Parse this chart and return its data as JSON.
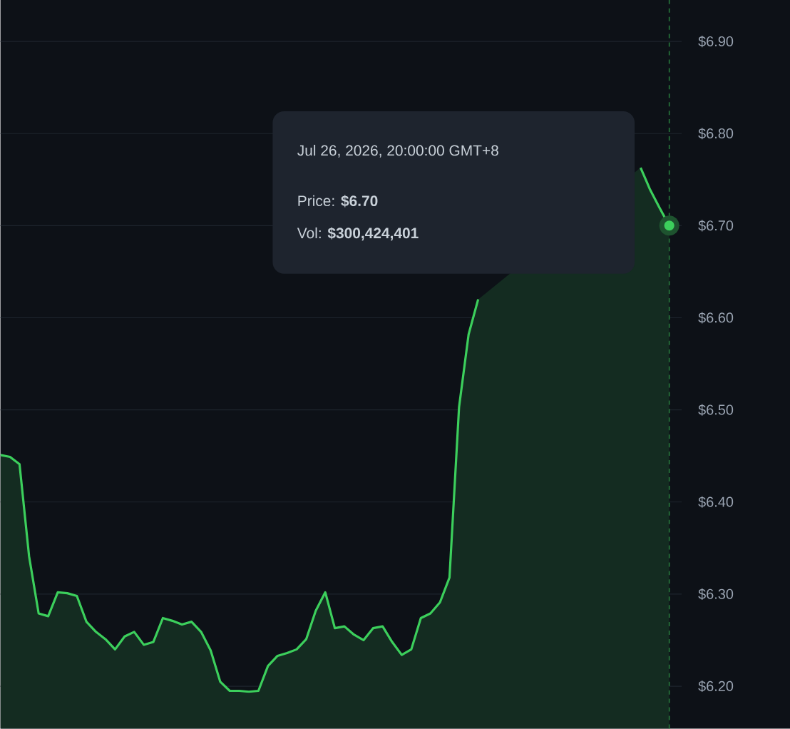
{
  "chart_data": {
    "type": "area",
    "color": "#3ccf5c",
    "categories": [
      null,
      null,
      null,
      null,
      null,
      null,
      null,
      null,
      null,
      null,
      null,
      null,
      null,
      null,
      null,
      null,
      null,
      null,
      null,
      null,
      null,
      null,
      null,
      null,
      null,
      null,
      null,
      null,
      null,
      null,
      null,
      null,
      null,
      null,
      null,
      null,
      null,
      null,
      null,
      null,
      null,
      null,
      null,
      null,
      null,
      null,
      null,
      null,
      null,
      null,
      null,
      null,
      null,
      null,
      null,
      null,
      null,
      null,
      null,
      null,
      null,
      null,
      null,
      null,
      null,
      null,
      null,
      null,
      null,
      null,
      null
    ],
    "values": [
      6.451,
      6.449,
      6.441,
      6.341,
      6.279,
      6.276,
      6.302,
      6.301,
      6.298,
      6.27,
      6.259,
      6.251,
      6.24,
      6.254,
      6.259,
      6.245,
      6.248,
      6.274,
      6.271,
      6.267,
      6.27,
      6.259,
      6.239,
      6.205,
      6.195,
      6.195,
      6.194,
      6.195,
      6.222,
      6.233,
      6.236,
      6.24,
      6.251,
      6.282,
      6.302,
      6.263,
      6.265,
      6.256,
      6.25,
      6.263,
      6.265,
      6.248,
      6.234,
      6.24,
      6.274,
      6.279,
      6.291,
      6.318,
      6.503,
      6.582,
      6.62,
      null,
      null,
      null,
      null,
      null,
      null,
      null,
      null,
      null,
      null,
      null,
      null,
      null,
      null,
      null,
      null,
      6.763,
      6.739,
      6.719,
      6.7
    ],
    "ylim": [
      6.154,
      6.945
    ],
    "yticks": [
      {
        "value": 6.2,
        "label": "$6.20"
      },
      {
        "value": 6.3,
        "label": "$6.30"
      },
      {
        "value": 6.4,
        "label": "$6.40"
      },
      {
        "value": 6.5,
        "label": "$6.50"
      },
      {
        "value": 6.6,
        "label": "$6.60"
      },
      {
        "value": 6.7,
        "label": "$6.70"
      },
      {
        "value": 6.8,
        "label": "$6.80"
      },
      {
        "value": 6.9,
        "label": "$6.90"
      }
    ],
    "grid": "y",
    "tick_labels": "y",
    "annotations": [
      "Jul 26, 2026, 20:00:00 GMT+8",
      "Price: **$6.70**",
      "Vol: **$300,424,401**"
    ]
  }
}
